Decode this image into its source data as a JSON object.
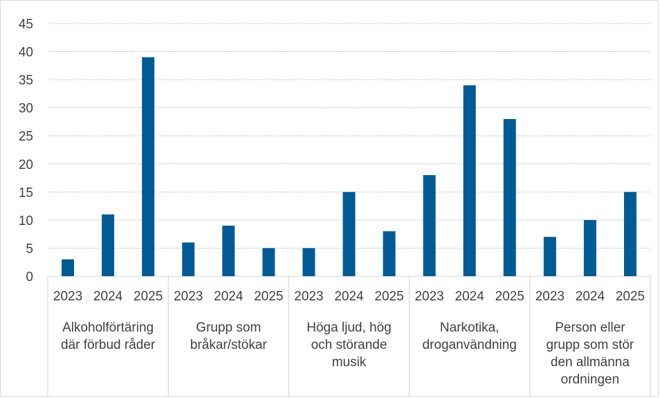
{
  "chart_data": {
    "type": "bar",
    "title": "",
    "xlabel": "",
    "ylabel": "",
    "ylim": [
      0,
      45
    ],
    "yticks": [
      "0",
      "5",
      "10",
      "15",
      "20",
      "25",
      "30",
      "35",
      "40",
      "45"
    ],
    "grid": true,
    "legend": "none",
    "bar_color": "#005b94",
    "groups": [
      {
        "label": [
          "Alkoholförtäring",
          "där förbud råder"
        ],
        "years": [
          "2023",
          "2024",
          "2025"
        ],
        "values": [
          3,
          11,
          39
        ]
      },
      {
        "label": [
          "Grupp som",
          "bråkar/stökar"
        ],
        "years": [
          "2023",
          "2024",
          "2025"
        ],
        "values": [
          6,
          9,
          5
        ]
      },
      {
        "label": [
          "Höga ljud, hög",
          "och störande",
          "musik"
        ],
        "years": [
          "2023",
          "2024",
          "2025"
        ],
        "values": [
          5,
          15,
          8
        ]
      },
      {
        "label": [
          "Narkotika,",
          "droganvändning"
        ],
        "years": [
          "2023",
          "2024",
          "2025"
        ],
        "values": [
          18,
          34,
          28
        ]
      },
      {
        "label": [
          "Person eller",
          "grupp som stör",
          "den allmänna",
          "ordningen"
        ],
        "years": [
          "2023",
          "2024",
          "2025"
        ],
        "values": [
          7,
          10,
          15
        ]
      }
    ]
  }
}
